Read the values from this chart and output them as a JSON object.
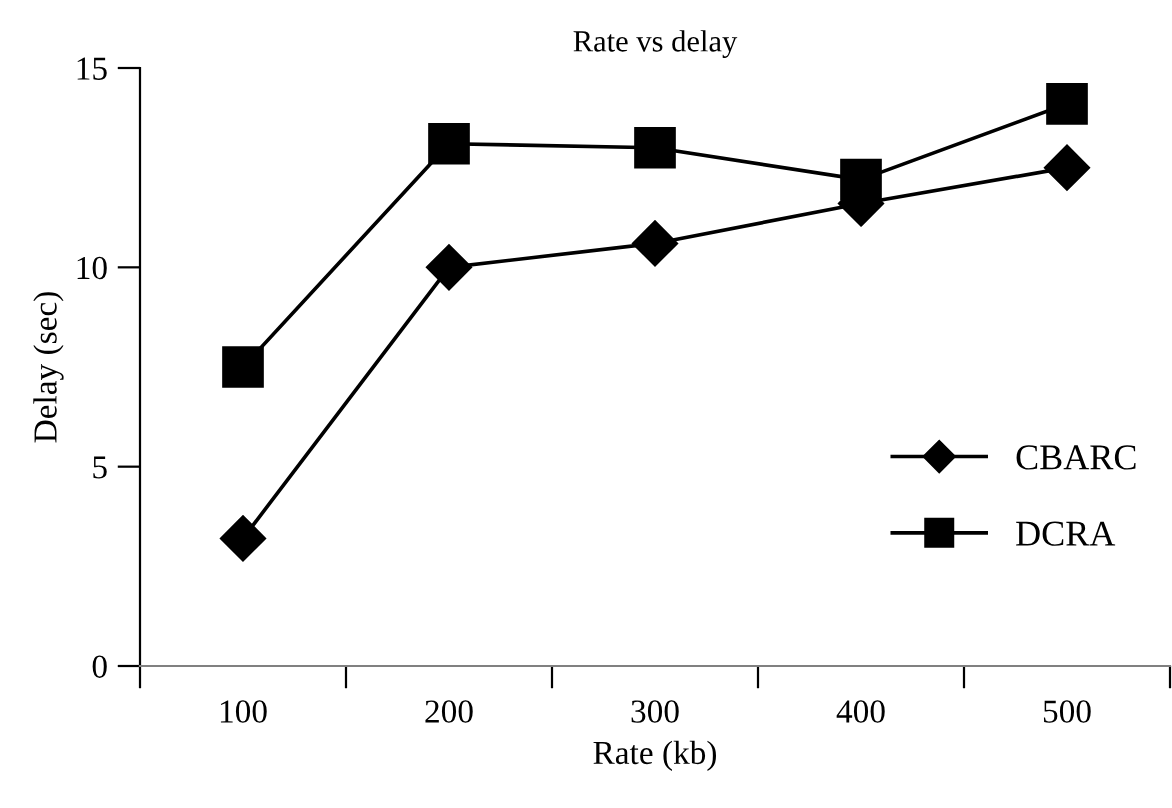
{
  "chart_data": {
    "type": "line",
    "title": "Rate vs delay",
    "xlabel": "Rate (kb)",
    "ylabel": "Delay (sec)",
    "categories": [
      "100",
      "200",
      "300",
      "400",
      "500"
    ],
    "series": [
      {
        "name": "CBARC",
        "color": "#000000",
        "marker": "diamond",
        "values": [
          3.2,
          10.0,
          10.6,
          11.6,
          12.5
        ]
      },
      {
        "name": "DCRA",
        "color": "#000000",
        "marker": "square",
        "values": [
          7.5,
          13.1,
          13.0,
          12.2,
          14.1
        ]
      }
    ],
    "ylim": [
      0,
      15
    ],
    "yticks": [
      0,
      5,
      10,
      15
    ],
    "grid": false,
    "legend": "right",
    "line_style": "solid"
  }
}
